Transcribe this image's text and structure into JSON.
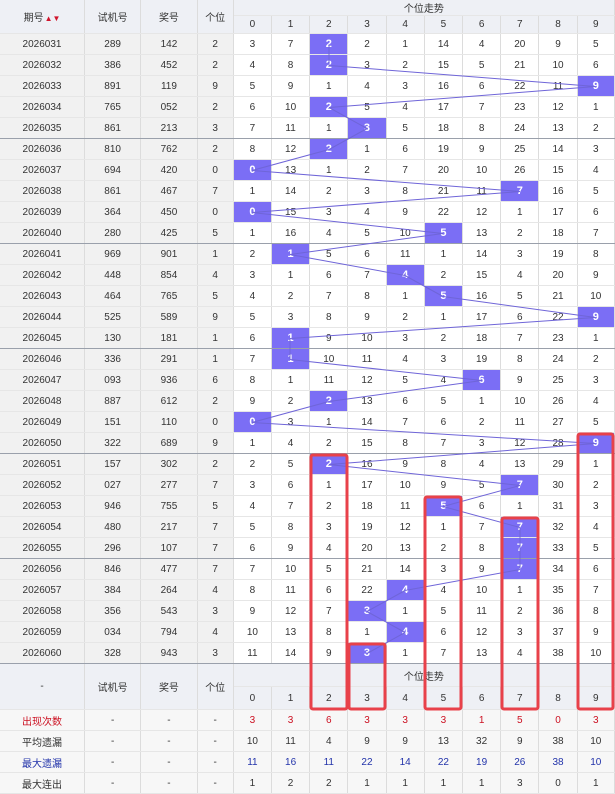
{
  "header": {
    "issue_label": "期号",
    "trial_label": "试机号",
    "prize_label": "奖号",
    "units_label": "个位",
    "trend_label": "个位走势",
    "digits": [
      "0",
      "1",
      "2",
      "3",
      "4",
      "5",
      "6",
      "7",
      "8",
      "9"
    ]
  },
  "footer": {
    "dash_label": "-",
    "trial_label": "试机号",
    "prize_label": "奖号",
    "units_label": "个位",
    "trend_label": "个位走势"
  },
  "chart_data": {
    "type": "table",
    "title": "个位走势",
    "columns": [
      "期号",
      "试机号",
      "奖号",
      "个位",
      "0",
      "1",
      "2",
      "3",
      "4",
      "5",
      "6",
      "7",
      "8",
      "9"
    ],
    "rows": [
      {
        "issue": "2026031",
        "trial": "289",
        "prize": "142",
        "unit": 2,
        "cells": [
          3,
          7,
          2,
          2,
          1,
          14,
          4,
          20,
          9,
          5
        ]
      },
      {
        "issue": "2026032",
        "trial": "386",
        "prize": "452",
        "unit": 2,
        "cells": [
          4,
          8,
          2,
          3,
          2,
          15,
          5,
          21,
          10,
          6
        ]
      },
      {
        "issue": "2026033",
        "trial": "891",
        "prize": "119",
        "unit": 9,
        "cells": [
          5,
          9,
          1,
          4,
          3,
          16,
          6,
          22,
          11,
          9
        ]
      },
      {
        "issue": "2026034",
        "trial": "765",
        "prize": "052",
        "unit": 2,
        "cells": [
          6,
          10,
          2,
          5,
          4,
          17,
          7,
          23,
          12,
          1
        ]
      },
      {
        "issue": "2026035",
        "trial": "861",
        "prize": "213",
        "unit": 3,
        "cells": [
          7,
          11,
          1,
          3,
          5,
          18,
          8,
          24,
          13,
          2
        ]
      },
      {
        "issue": "2026036",
        "trial": "810",
        "prize": "762",
        "unit": 2,
        "cells": [
          8,
          12,
          2,
          1,
          6,
          19,
          9,
          25,
          14,
          3
        ]
      },
      {
        "issue": "2026037",
        "trial": "694",
        "prize": "420",
        "unit": 0,
        "cells": [
          0,
          13,
          1,
          2,
          7,
          20,
          10,
          26,
          15,
          4
        ]
      },
      {
        "issue": "2026038",
        "trial": "861",
        "prize": "467",
        "unit": 7,
        "cells": [
          1,
          14,
          2,
          3,
          8,
          21,
          11,
          7,
          16,
          5
        ]
      },
      {
        "issue": "2026039",
        "trial": "364",
        "prize": "450",
        "unit": 0,
        "cells": [
          0,
          15,
          3,
          4,
          9,
          22,
          12,
          1,
          17,
          6
        ]
      },
      {
        "issue": "2026040",
        "trial": "280",
        "prize": "425",
        "unit": 5,
        "cells": [
          1,
          16,
          4,
          5,
          10,
          5,
          13,
          2,
          18,
          7
        ]
      },
      {
        "issue": "2026041",
        "trial": "969",
        "prize": "901",
        "unit": 1,
        "cells": [
          2,
          1,
          5,
          6,
          11,
          1,
          14,
          3,
          19,
          8
        ]
      },
      {
        "issue": "2026042",
        "trial": "448",
        "prize": "854",
        "unit": 4,
        "cells": [
          3,
          1,
          6,
          7,
          4,
          2,
          15,
          4,
          20,
          9
        ]
      },
      {
        "issue": "2026043",
        "trial": "464",
        "prize": "765",
        "unit": 5,
        "cells": [
          4,
          2,
          7,
          8,
          1,
          5,
          16,
          5,
          21,
          10
        ]
      },
      {
        "issue": "2026044",
        "trial": "525",
        "prize": "589",
        "unit": 9,
        "cells": [
          5,
          3,
          8,
          9,
          2,
          1,
          17,
          6,
          22,
          9
        ]
      },
      {
        "issue": "2026045",
        "trial": "130",
        "prize": "181",
        "unit": 1,
        "cells": [
          6,
          1,
          9,
          10,
          3,
          2,
          18,
          7,
          23,
          1
        ]
      },
      {
        "issue": "2026046",
        "trial": "336",
        "prize": "291",
        "unit": 1,
        "cells": [
          7,
          1,
          10,
          11,
          4,
          3,
          19,
          8,
          24,
          2
        ]
      },
      {
        "issue": "2026047",
        "trial": "093",
        "prize": "936",
        "unit": 6,
        "cells": [
          8,
          1,
          11,
          12,
          5,
          4,
          6,
          9,
          25,
          3
        ]
      },
      {
        "issue": "2026048",
        "trial": "887",
        "prize": "612",
        "unit": 2,
        "cells": [
          9,
          2,
          2,
          13,
          6,
          5,
          1,
          10,
          26,
          4
        ]
      },
      {
        "issue": "2026049",
        "trial": "151",
        "prize": "110",
        "unit": 0,
        "cells": [
          0,
          3,
          1,
          14,
          7,
          6,
          2,
          11,
          27,
          5
        ]
      },
      {
        "issue": "2026050",
        "trial": "322",
        "prize": "689",
        "unit": 9,
        "cells": [
          1,
          4,
          2,
          15,
          8,
          7,
          3,
          12,
          28,
          9
        ]
      },
      {
        "issue": "2026051",
        "trial": "157",
        "prize": "302",
        "unit": 2,
        "cells": [
          2,
          5,
          2,
          16,
          9,
          8,
          4,
          13,
          29,
          1
        ]
      },
      {
        "issue": "2026052",
        "trial": "027",
        "prize": "277",
        "unit": 7,
        "cells": [
          3,
          6,
          1,
          17,
          10,
          9,
          5,
          7,
          30,
          2
        ]
      },
      {
        "issue": "2026053",
        "trial": "946",
        "prize": "755",
        "unit": 5,
        "cells": [
          4,
          7,
          2,
          18,
          11,
          5,
          6,
          1,
          31,
          3
        ]
      },
      {
        "issue": "2026054",
        "trial": "480",
        "prize": "217",
        "unit": 7,
        "cells": [
          5,
          8,
          3,
          19,
          12,
          1,
          7,
          7,
          32,
          4
        ]
      },
      {
        "issue": "2026055",
        "trial": "296",
        "prize": "107",
        "unit": 7,
        "cells": [
          6,
          9,
          4,
          20,
          13,
          2,
          8,
          7,
          33,
          5
        ]
      },
      {
        "issue": "2026056",
        "trial": "846",
        "prize": "477",
        "unit": 7,
        "cells": [
          7,
          10,
          5,
          21,
          14,
          3,
          9,
          7,
          34,
          6
        ]
      },
      {
        "issue": "2026057",
        "trial": "384",
        "prize": "264",
        "unit": 4,
        "cells": [
          8,
          11,
          6,
          22,
          4,
          4,
          10,
          1,
          35,
          7
        ]
      },
      {
        "issue": "2026058",
        "trial": "356",
        "prize": "543",
        "unit": 3,
        "cells": [
          9,
          12,
          7,
          3,
          1,
          5,
          11,
          2,
          36,
          8
        ]
      },
      {
        "issue": "2026059",
        "trial": "034",
        "prize": "794",
        "unit": 4,
        "cells": [
          10,
          13,
          8,
          1,
          4,
          6,
          12,
          3,
          37,
          9
        ]
      },
      {
        "issue": "2026060",
        "trial": "328",
        "prize": "943",
        "unit": 3,
        "cells": [
          11,
          14,
          9,
          3,
          1,
          7,
          13,
          4,
          38,
          10
        ]
      }
    ],
    "stats": [
      {
        "label": "出现次数",
        "color": "red",
        "values": [
          3,
          3,
          6,
          3,
          3,
          3,
          1,
          5,
          0,
          3
        ]
      },
      {
        "label": "平均遗漏",
        "color": "black",
        "values": [
          10,
          11,
          4,
          9,
          9,
          13,
          32,
          9,
          38,
          10
        ]
      },
      {
        "label": "最大遗漏",
        "color": "blue",
        "values": [
          11,
          16,
          11,
          22,
          14,
          22,
          19,
          26,
          38,
          10
        ]
      },
      {
        "label": "最大连出",
        "color": "black",
        "values": [
          1,
          2,
          2,
          1,
          1,
          1,
          1,
          3,
          0,
          1
        ]
      }
    ],
    "highlight_columns": [
      "2",
      "3",
      "5",
      "7",
      "9"
    ]
  }
}
